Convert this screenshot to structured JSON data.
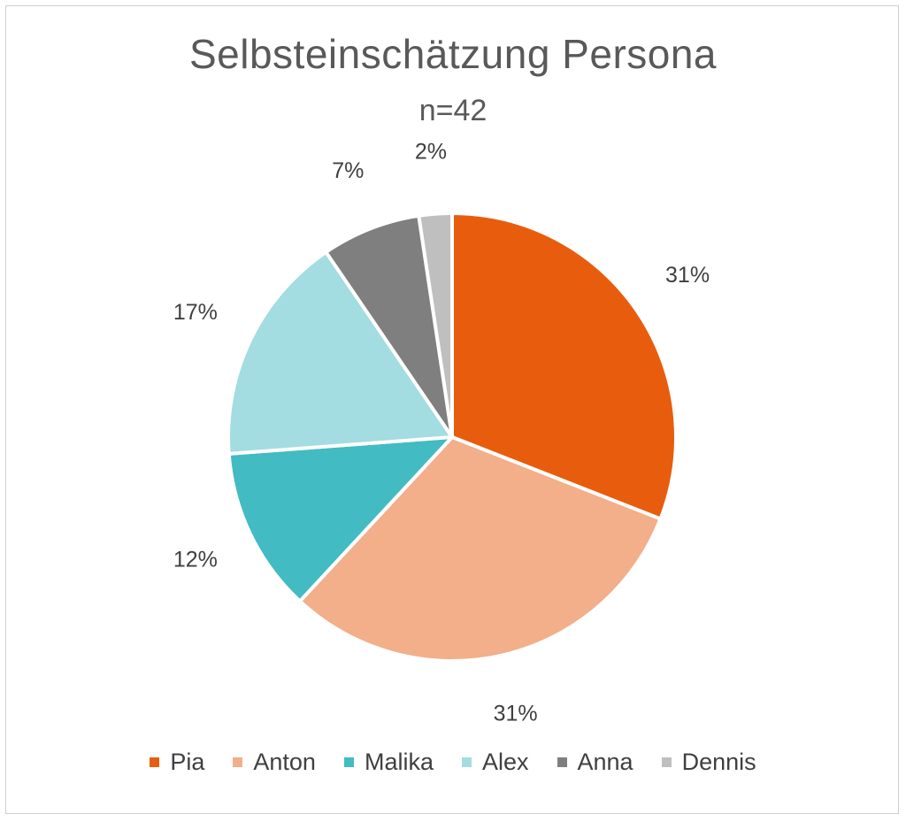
{
  "chart_data": {
    "type": "pie",
    "title": "Selbsteinschätzung Persona",
    "subtitle": "n=42",
    "categories": [
      "Pia",
      "Anton",
      "Malika",
      "Alex",
      "Anna",
      "Dennis"
    ],
    "values": [
      13,
      13,
      5,
      7,
      3,
      1
    ],
    "labels": [
      "31%",
      "31%",
      "12%",
      "17%",
      "7%",
      "2%"
    ],
    "colors": [
      "#E85D0D",
      "#F2AF89",
      "#42BBC2",
      "#A3DCE1",
      "#7F7F7F",
      "#BFBFBF"
    ],
    "legend_position": "bottom"
  }
}
